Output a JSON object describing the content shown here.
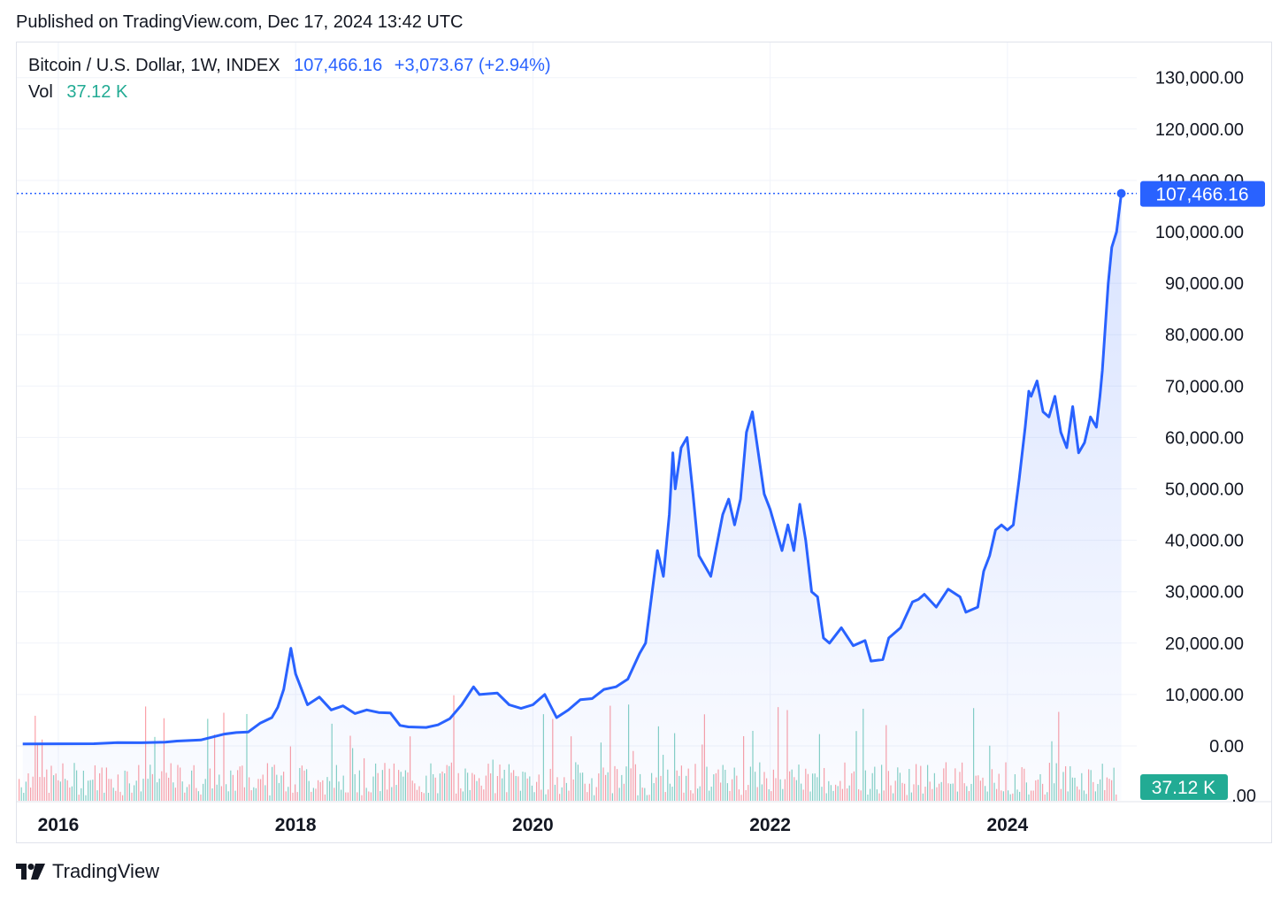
{
  "header": {
    "published": "Published on TradingView.com, Dec 17, 2024 13:42 UTC"
  },
  "legend": {
    "symbol": "Bitcoin / U.S. Dollar, 1W, INDEX",
    "price": "107,466.16",
    "change": "+3,073.67 (+2.94%)",
    "vol_label": "Vol",
    "vol_value": "37.12 K"
  },
  "footer": {
    "brand": "TradingView",
    "logo_icon": "tradingview-logo-icon"
  },
  "colors": {
    "line": "#2962ff",
    "vol_up": "#22ab94",
    "vol_down": "#f7525f",
    "grid": "#f0f3fa"
  },
  "chart_data": {
    "type": "area",
    "title": "Bitcoin / U.S. Dollar, 1W, INDEX",
    "xlabel": "",
    "ylabel": "",
    "ylim": [
      -10000,
      135000
    ],
    "grid": true,
    "x_ticks": [
      "2016",
      "2018",
      "2020",
      "2022",
      "2024"
    ],
    "y_ticks": [
      "130,000.00",
      "120,000.00",
      "110,000.00",
      "100,000.00",
      "90,000.00",
      "80,000.00",
      "70,000.00",
      "60,000.00",
      "50,000.00",
      "40,000.00",
      "30,000.00",
      "20,000.00",
      "10,000.00",
      "0.00"
    ],
    "last_price_label": "107,466.16",
    "last_volume_label": "37.12 K",
    "series": [
      {
        "type": "line",
        "points": [
          [
            2015.7,
            400
          ],
          [
            2016.0,
            420
          ],
          [
            2016.3,
            430
          ],
          [
            2016.5,
            650
          ],
          [
            2016.7,
            620
          ],
          [
            2016.9,
            720
          ],
          [
            2017.0,
            950
          ],
          [
            2017.2,
            1150
          ],
          [
            2017.4,
            2300
          ],
          [
            2017.5,
            2600
          ],
          [
            2017.6,
            2700
          ],
          [
            2017.7,
            4400
          ],
          [
            2017.8,
            5500
          ],
          [
            2017.85,
            7500
          ],
          [
            2017.9,
            11000
          ],
          [
            2017.96,
            19000
          ],
          [
            2018.0,
            14000
          ],
          [
            2018.05,
            11000
          ],
          [
            2018.1,
            8000
          ],
          [
            2018.2,
            9500
          ],
          [
            2018.3,
            7000
          ],
          [
            2018.4,
            7800
          ],
          [
            2018.5,
            6300
          ],
          [
            2018.6,
            7000
          ],
          [
            2018.7,
            6500
          ],
          [
            2018.8,
            6400
          ],
          [
            2018.88,
            4000
          ],
          [
            2018.95,
            3700
          ],
          [
            2019.1,
            3600
          ],
          [
            2019.2,
            4100
          ],
          [
            2019.3,
            5300
          ],
          [
            2019.4,
            8000
          ],
          [
            2019.5,
            11500
          ],
          [
            2019.55,
            10000
          ],
          [
            2019.7,
            10300
          ],
          [
            2019.8,
            8000
          ],
          [
            2019.9,
            7300
          ],
          [
            2020.0,
            8000
          ],
          [
            2020.1,
            10000
          ],
          [
            2020.2,
            5500
          ],
          [
            2020.3,
            7000
          ],
          [
            2020.4,
            9000
          ],
          [
            2020.5,
            9200
          ],
          [
            2020.6,
            11000
          ],
          [
            2020.7,
            11500
          ],
          [
            2020.8,
            13000
          ],
          [
            2020.9,
            18000
          ],
          [
            2020.95,
            20000
          ],
          [
            2021.0,
            29000
          ],
          [
            2021.05,
            38000
          ],
          [
            2021.1,
            33000
          ],
          [
            2021.15,
            45000
          ],
          [
            2021.18,
            57000
          ],
          [
            2021.2,
            50000
          ],
          [
            2021.25,
            58000
          ],
          [
            2021.3,
            60000
          ],
          [
            2021.35,
            49000
          ],
          [
            2021.4,
            37000
          ],
          [
            2021.45,
            35000
          ],
          [
            2021.5,
            33000
          ],
          [
            2021.55,
            39000
          ],
          [
            2021.6,
            45000
          ],
          [
            2021.65,
            48000
          ],
          [
            2021.7,
            43000
          ],
          [
            2021.75,
            48000
          ],
          [
            2021.8,
            61000
          ],
          [
            2021.85,
            65000
          ],
          [
            2021.9,
            57000
          ],
          [
            2021.95,
            49000
          ],
          [
            2022.0,
            46000
          ],
          [
            2022.05,
            42000
          ],
          [
            2022.1,
            38000
          ],
          [
            2022.15,
            43000
          ],
          [
            2022.2,
            38000
          ],
          [
            2022.25,
            47000
          ],
          [
            2022.3,
            40000
          ],
          [
            2022.35,
            30000
          ],
          [
            2022.4,
            29000
          ],
          [
            2022.45,
            21000
          ],
          [
            2022.5,
            20000
          ],
          [
            2022.6,
            23000
          ],
          [
            2022.7,
            19500
          ],
          [
            2022.8,
            20500
          ],
          [
            2022.85,
            16500
          ],
          [
            2022.95,
            16800
          ],
          [
            2023.0,
            21000
          ],
          [
            2023.1,
            23000
          ],
          [
            2023.2,
            28000
          ],
          [
            2023.25,
            28500
          ],
          [
            2023.3,
            29500
          ],
          [
            2023.4,
            27000
          ],
          [
            2023.5,
            30500
          ],
          [
            2023.6,
            29000
          ],
          [
            2023.65,
            26000
          ],
          [
            2023.75,
            27000
          ],
          [
            2023.8,
            34000
          ],
          [
            2023.85,
            37000
          ],
          [
            2023.9,
            42000
          ],
          [
            2023.95,
            43000
          ],
          [
            2024.0,
            42000
          ],
          [
            2024.05,
            43000
          ],
          [
            2024.1,
            52000
          ],
          [
            2024.15,
            62000
          ],
          [
            2024.18,
            69000
          ],
          [
            2024.2,
            68000
          ],
          [
            2024.25,
            71000
          ],
          [
            2024.3,
            65000
          ],
          [
            2024.35,
            64000
          ],
          [
            2024.4,
            68000
          ],
          [
            2024.45,
            61000
          ],
          [
            2024.5,
            58000
          ],
          [
            2024.55,
            66000
          ],
          [
            2024.6,
            57000
          ],
          [
            2024.65,
            59000
          ],
          [
            2024.7,
            64000
          ],
          [
            2024.75,
            62000
          ],
          [
            2024.78,
            68000
          ],
          [
            2024.8,
            73000
          ],
          [
            2024.85,
            90000
          ],
          [
            2024.88,
            97000
          ],
          [
            2024.92,
            100000
          ],
          [
            2024.96,
            107466.16
          ]
        ]
      }
    ]
  }
}
